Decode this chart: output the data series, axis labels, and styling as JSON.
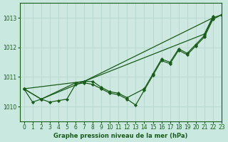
{
  "background_color": "#c8e8e0",
  "plot_bg_color": "#cce8e0",
  "grid_color": "#b8d8d0",
  "line_color": "#1a5c1a",
  "marker_color": "#1a5c1a",
  "title": "Graphe pression niveau de la mer (hPa)",
  "xlim": [
    -0.5,
    23
  ],
  "ylim": [
    1009.5,
    1013.5
  ],
  "yticks": [
    1010,
    1011,
    1012,
    1013
  ],
  "xticks": [
    0,
    1,
    2,
    3,
    4,
    5,
    6,
    7,
    8,
    9,
    10,
    11,
    12,
    13,
    14,
    15,
    16,
    17,
    18,
    19,
    20,
    21,
    22,
    23
  ],
  "series": [
    {
      "x": [
        0,
        1,
        2,
        3,
        4,
        5,
        6,
        7,
        8,
        9,
        10,
        11,
        12,
        13,
        14,
        15,
        16,
        17,
        18,
        19,
        20,
        21,
        22,
        23
      ],
      "y": [
        1010.6,
        1010.15,
        1010.25,
        1010.15,
        1010.2,
        1010.25,
        1010.75,
        1010.8,
        1010.75,
        1010.6,
        1010.45,
        1010.4,
        1010.25,
        1010.05,
        1010.55,
        1011.05,
        1011.55,
        1011.45,
        1011.9,
        1011.75,
        1012.05,
        1012.35,
        1012.95,
        1013.1
      ]
    },
    {
      "x": [
        0,
        7,
        22,
        23
      ],
      "y": [
        1010.6,
        1010.85,
        1013.0,
        1013.1
      ]
    },
    {
      "x": [
        0,
        2,
        7,
        21,
        22
      ],
      "y": [
        1010.6,
        1010.25,
        1010.85,
        1012.45,
        1013.05
      ]
    },
    {
      "x": [
        0,
        2,
        6,
        7,
        8,
        9,
        10,
        11,
        12,
        14,
        15,
        16,
        17,
        18,
        19,
        20,
        21,
        22
      ],
      "y": [
        1010.6,
        1010.25,
        1010.8,
        1010.85,
        1010.85,
        1010.65,
        1010.5,
        1010.45,
        1010.3,
        1010.6,
        1011.1,
        1011.6,
        1011.5,
        1011.95,
        1011.8,
        1012.1,
        1012.4,
        1013.0
      ]
    }
  ]
}
